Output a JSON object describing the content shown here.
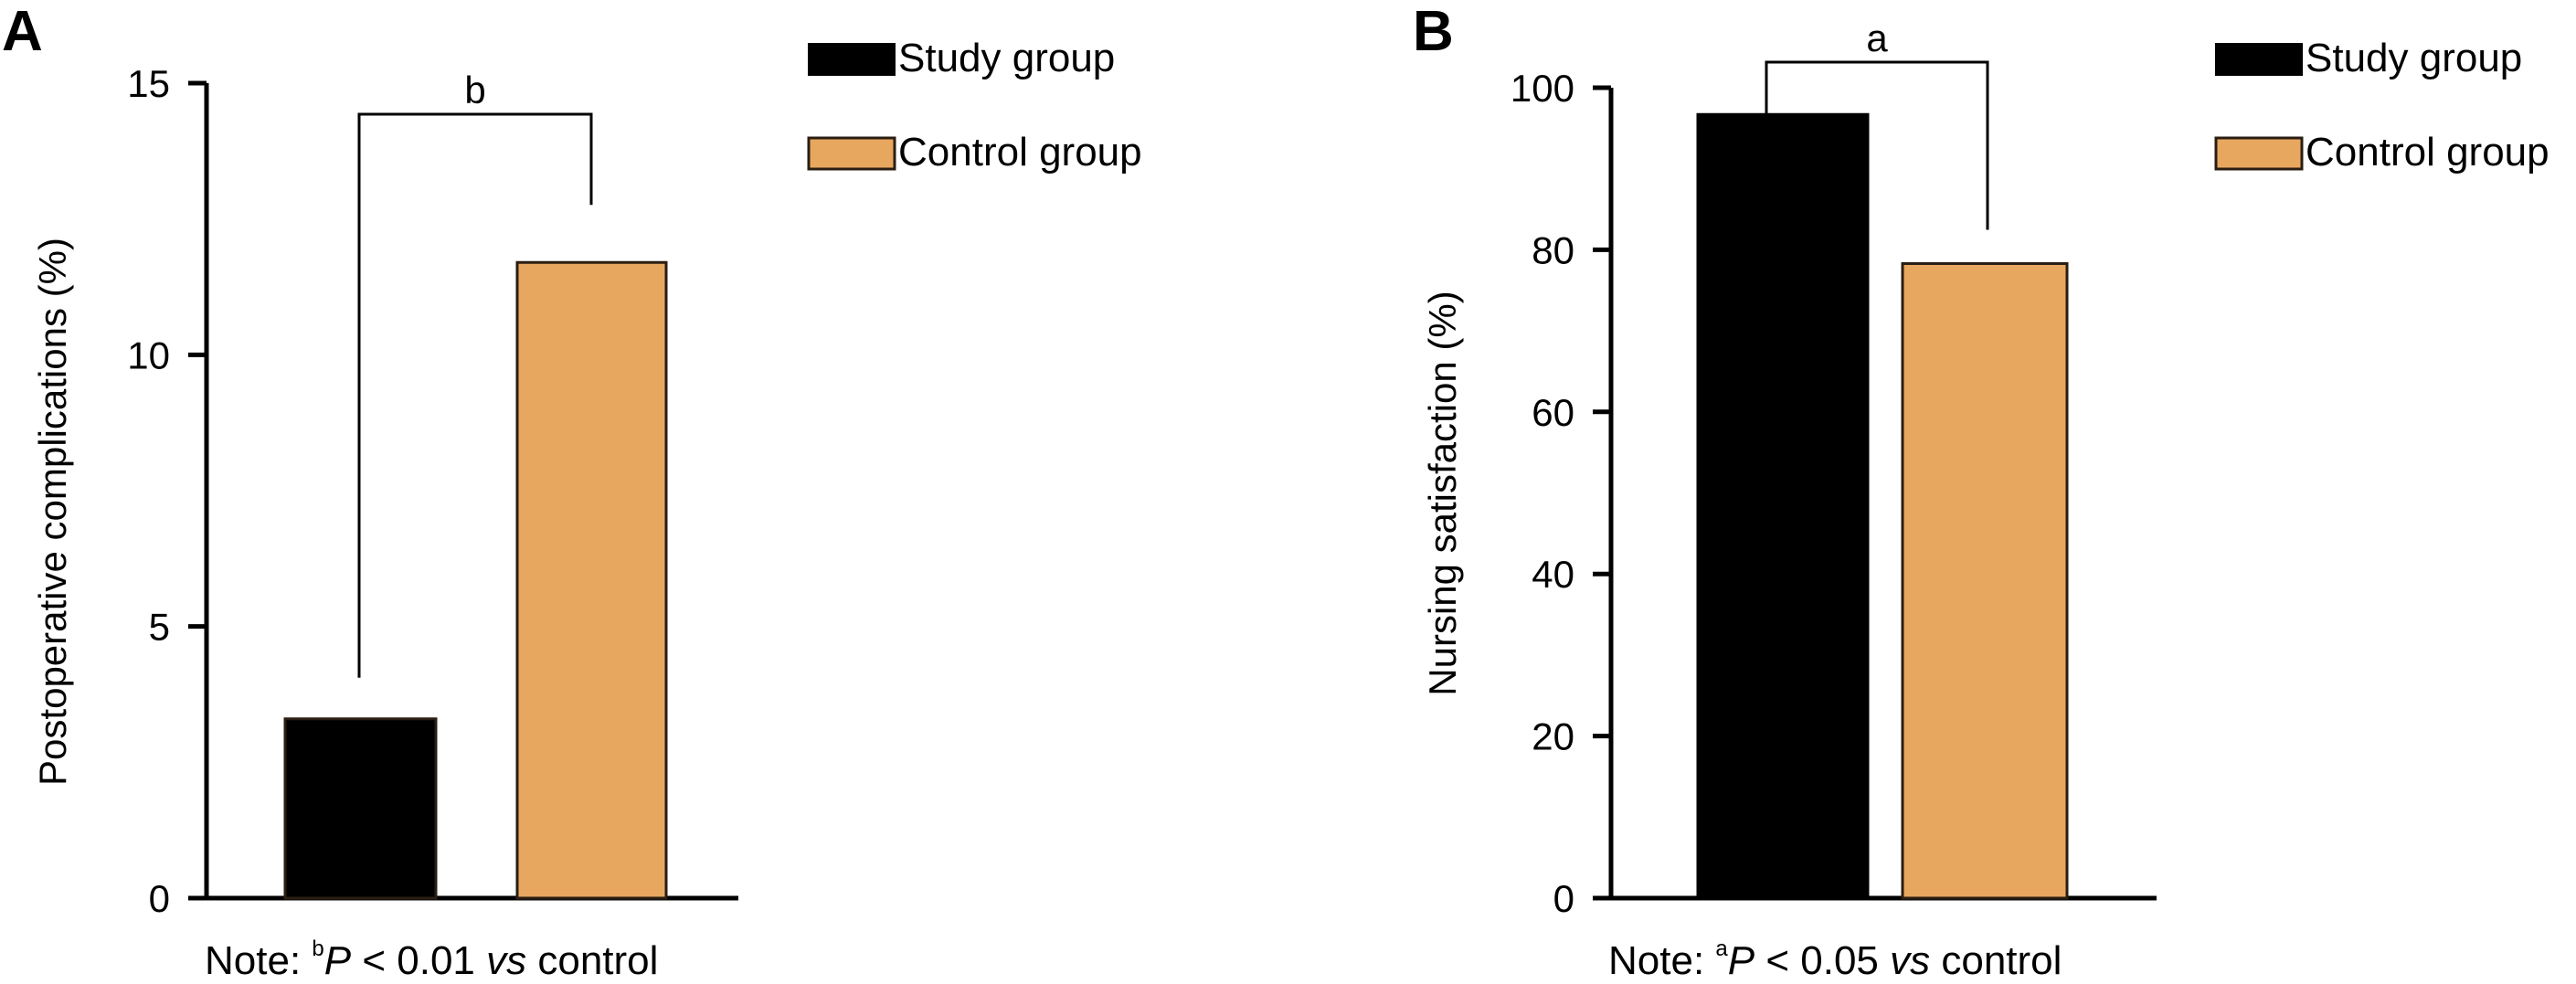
{
  "colors": {
    "study": "#000000",
    "control": "#e8a75f",
    "axis": "#000000"
  },
  "chart_data": [
    {
      "type": "bar",
      "panel": "A",
      "categories": [
        "Study group",
        "Control group"
      ],
      "values": [
        3.3,
        11.7
      ],
      "ylabel": "Postoperative complications (%)",
      "xlabel": "",
      "ylim": [
        0,
        15
      ],
      "yticks": [
        "0",
        "5",
        "10",
        "15"
      ],
      "significance": "b",
      "note": {
        "prefix": "Note: ",
        "sup": "b",
        "p": "P",
        "rest": " < 0.01 ",
        "vs": "vs",
        "suffix": " control"
      },
      "legend": [
        "Study group",
        "Control group"
      ],
      "grid": false
    },
    {
      "type": "bar",
      "panel": "B",
      "categories": [
        "Study group",
        "Control group"
      ],
      "values": [
        96.7,
        78.3
      ],
      "ylabel": "Nursing satisfaction (%)",
      "xlabel": "",
      "ylim": [
        0,
        100
      ],
      "yticks": [
        "0",
        "20",
        "40",
        "60",
        "80",
        "100"
      ],
      "significance": "a",
      "note": {
        "prefix": "Note: ",
        "sup": "a",
        "p": "P",
        "rest": " < 0.05 ",
        "vs": "vs",
        "suffix": " control"
      },
      "legend": [
        "Study group",
        "Control group"
      ],
      "grid": false
    }
  ]
}
